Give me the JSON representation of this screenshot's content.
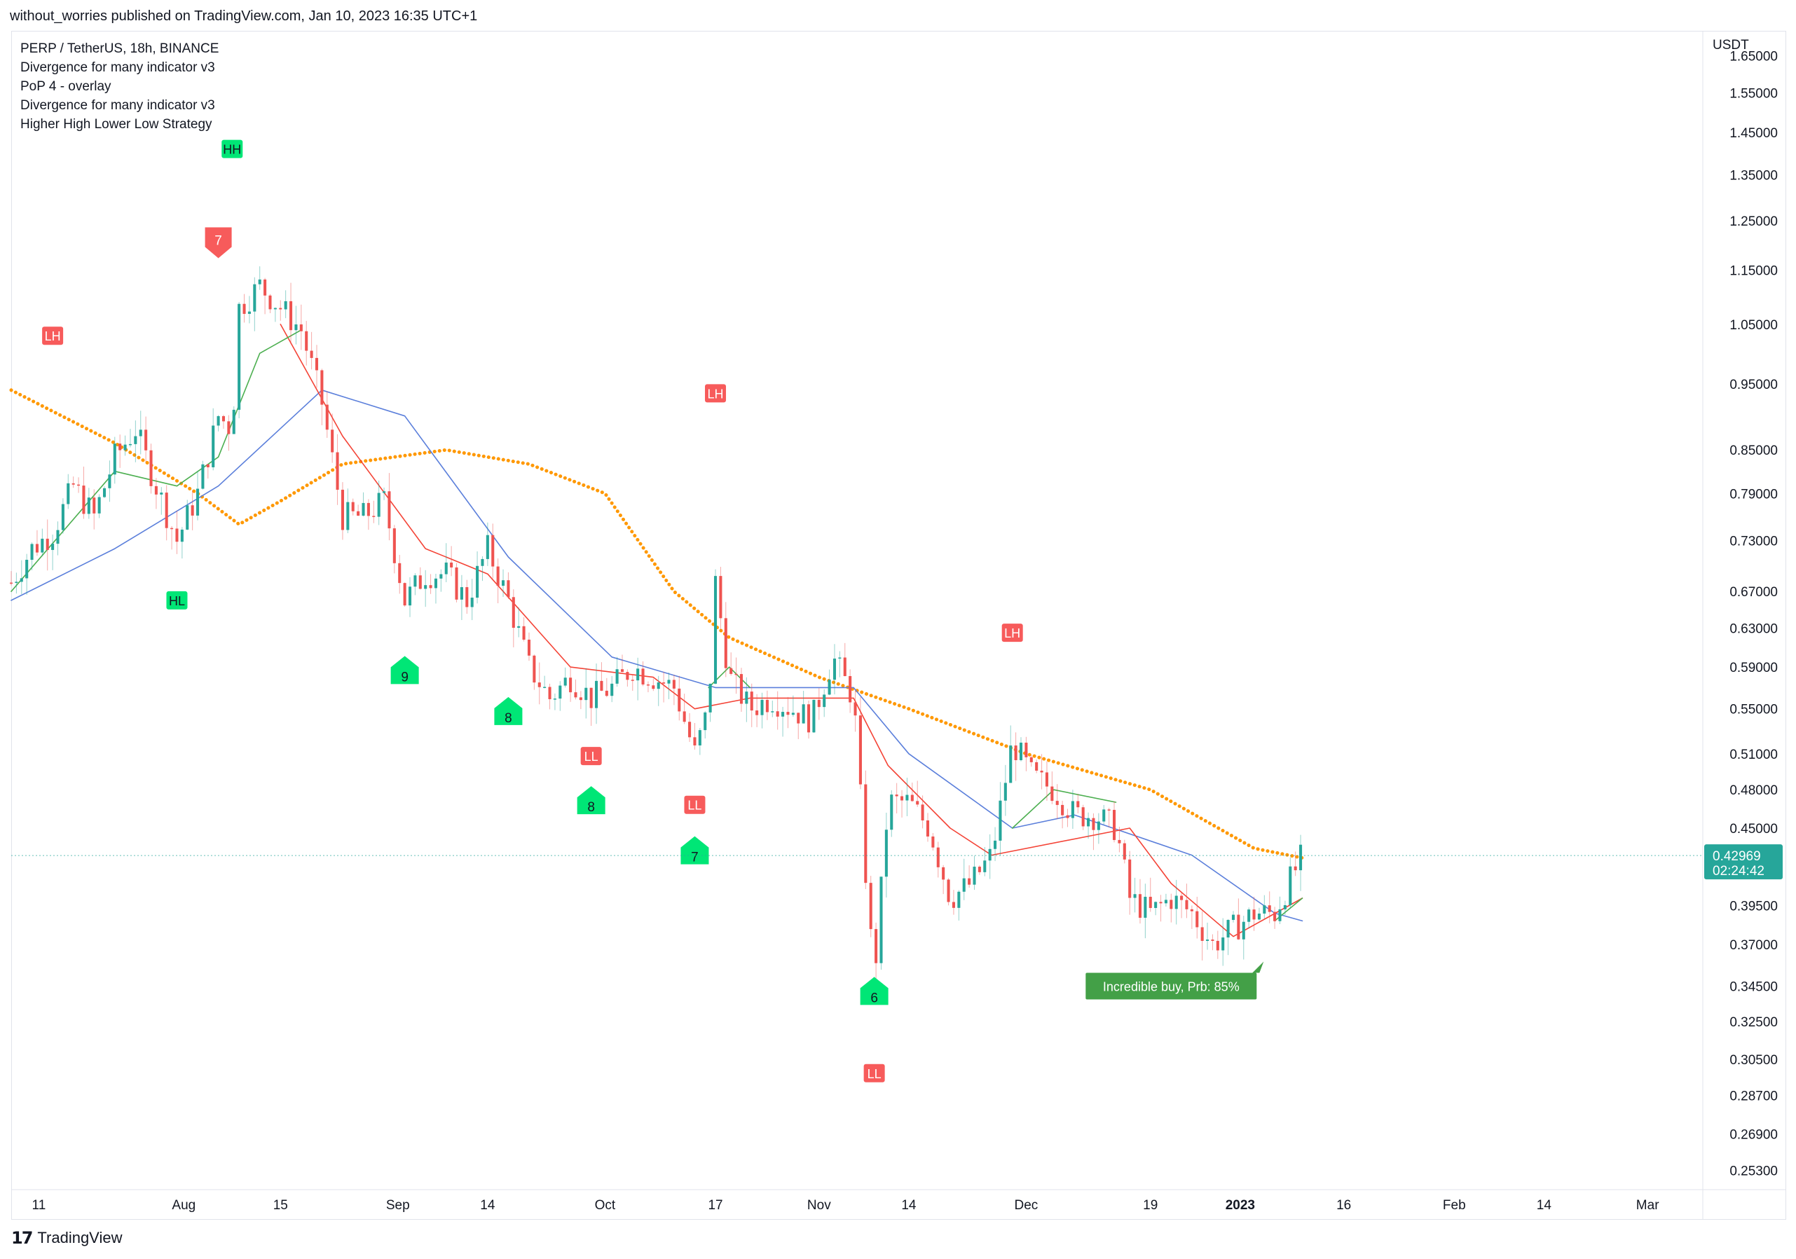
{
  "header": {
    "published_by": "without_worries published on TradingView.com, Jan 10, 2023 16:35 UTC+1"
  },
  "legend": {
    "symbol_line": "PERP / TetherUS, 18h, BINANCE",
    "indicators": [
      "Divergence for many indicator v3",
      "PoP 4 - overlay",
      "Divergence for many indicator v3",
      "Higher High Lower Low Strategy"
    ]
  },
  "price_axis": {
    "currency": "USDT",
    "current_price": "0.42969",
    "countdown": "02:24:42",
    "current_price_color": "#26a69a"
  },
  "footer": {
    "brand": "TradingView",
    "logo_icon": "tradingview-logo-icon"
  },
  "chart_data": {
    "type": "candlestick",
    "y_scale": "log",
    "ylim": [
      0.245,
      1.72
    ],
    "yticks": [
      "1.65000",
      "1.55000",
      "1.45000",
      "1.35000",
      "1.25000",
      "1.15000",
      "1.05000",
      "0.95000",
      "0.85000",
      "0.79000",
      "0.73000",
      "0.67000",
      "0.63000",
      "0.59000",
      "0.55000",
      "0.51000",
      "0.48000",
      "0.45000",
      "0.39500",
      "0.37000",
      "0.34500",
      "0.32500",
      "0.30500",
      "0.28700",
      "0.26900",
      "0.25300"
    ],
    "ytick_values": [
      1.65,
      1.55,
      1.45,
      1.35,
      1.25,
      1.15,
      1.05,
      0.95,
      0.85,
      0.79,
      0.73,
      0.67,
      0.63,
      0.59,
      0.55,
      0.51,
      0.48,
      0.45,
      0.395,
      0.37,
      0.345,
      0.325,
      0.305,
      0.287,
      0.269,
      0.253
    ],
    "xticks": [
      {
        "label": "11",
        "date": "2022-07-11"
      },
      {
        "label": "Aug",
        "date": "2022-08-01"
      },
      {
        "label": "15",
        "date": "2022-08-15"
      },
      {
        "label": "Sep",
        "date": "2022-09-01"
      },
      {
        "label": "14",
        "date": "2022-09-14"
      },
      {
        "label": "Oct",
        "date": "2022-10-01"
      },
      {
        "label": "17",
        "date": "2022-10-17"
      },
      {
        "label": "Nov",
        "date": "2022-11-01"
      },
      {
        "label": "14",
        "date": "2022-11-14"
      },
      {
        "label": "Dec",
        "date": "2022-12-01"
      },
      {
        "label": "19",
        "date": "2022-12-19"
      },
      {
        "label": "2023",
        "date": "2023-01-01",
        "bold": true
      },
      {
        "label": "16",
        "date": "2023-01-16"
      },
      {
        "label": "Feb",
        "date": "2023-02-01"
      },
      {
        "label": "14",
        "date": "2023-02-14"
      },
      {
        "label": "Mar",
        "date": "2023-03-01"
      }
    ],
    "xlim": [
      "2022-07-07",
      "2023-03-09"
    ],
    "colors": {
      "up": "#26a69a",
      "down": "#ef5350",
      "ma_fast": "#4caf50",
      "ma_mid": "#f44336",
      "ma_slow": "#5b7fdb",
      "ma_long": "#ff9800",
      "label_green": "#00e676",
      "label_red": "#f75b5b",
      "buy_box": "#43a047"
    },
    "price_path": [
      [
        "2022-07-07",
        0.68
      ],
      [
        "2022-07-10",
        0.72
      ],
      [
        "2022-07-13",
        0.74
      ],
      [
        "2022-07-16",
        0.8
      ],
      [
        "2022-07-19",
        0.76
      ],
      [
        "2022-07-22",
        0.84
      ],
      [
        "2022-07-25",
        0.88
      ],
      [
        "2022-07-28",
        0.8
      ],
      [
        "2022-07-31",
        0.73
      ],
      [
        "2022-08-03",
        0.79
      ],
      [
        "2022-08-06",
        0.9
      ],
      [
        "2022-08-08",
        0.88
      ],
      [
        "2022-08-09",
        1.08
      ],
      [
        "2022-08-12",
        1.12
      ],
      [
        "2022-08-15",
        1.08
      ],
      [
        "2022-08-18",
        1.04
      ],
      [
        "2022-08-21",
        0.92
      ],
      [
        "2022-08-24",
        0.76
      ],
      [
        "2022-08-27",
        0.76
      ],
      [
        "2022-08-30",
        0.78
      ],
      [
        "2022-09-02",
        0.66
      ],
      [
        "2022-09-05",
        0.69
      ],
      [
        "2022-09-08",
        0.69
      ],
      [
        "2022-09-11",
        0.66
      ],
      [
        "2022-09-14",
        0.72
      ],
      [
        "2022-09-17",
        0.66
      ],
      [
        "2022-09-20",
        0.59
      ],
      [
        "2022-09-23",
        0.56
      ],
      [
        "2022-09-26",
        0.58
      ],
      [
        "2022-09-29",
        0.56
      ],
      [
        "2022-10-02",
        0.57
      ],
      [
        "2022-10-05",
        0.59
      ],
      [
        "2022-10-08",
        0.58
      ],
      [
        "2022-10-11",
        0.57
      ],
      [
        "2022-10-14",
        0.51
      ],
      [
        "2022-10-16",
        0.55
      ],
      [
        "2022-10-17",
        0.68
      ],
      [
        "2022-10-19",
        0.58
      ],
      [
        "2022-10-22",
        0.55
      ],
      [
        "2022-10-25",
        0.56
      ],
      [
        "2022-10-28",
        0.55
      ],
      [
        "2022-10-31",
        0.54
      ],
      [
        "2022-11-03",
        0.6
      ],
      [
        "2022-11-06",
        0.56
      ],
      [
        "2022-11-08",
        0.4
      ],
      [
        "2022-11-09",
        0.35
      ],
      [
        "2022-11-11",
        0.47
      ],
      [
        "2022-11-14",
        0.47
      ],
      [
        "2022-11-17",
        0.45
      ],
      [
        "2022-11-20",
        0.4
      ],
      [
        "2022-11-23",
        0.41
      ],
      [
        "2022-11-26",
        0.43
      ],
      [
        "2022-11-29",
        0.52
      ],
      [
        "2022-12-02",
        0.49
      ],
      [
        "2022-12-05",
        0.48
      ],
      [
        "2022-12-08",
        0.46
      ],
      [
        "2022-12-11",
        0.46
      ],
      [
        "2022-12-14",
        0.45
      ],
      [
        "2022-12-16",
        0.4
      ],
      [
        "2022-12-19",
        0.39
      ],
      [
        "2022-12-22",
        0.4
      ],
      [
        "2022-12-25",
        0.39
      ],
      [
        "2022-12-28",
        0.37
      ],
      [
        "2022-12-31",
        0.38
      ],
      [
        "2023-01-03",
        0.39
      ],
      [
        "2023-01-06",
        0.39
      ],
      [
        "2023-01-08",
        0.41
      ],
      [
        "2023-01-10",
        0.42969
      ]
    ],
    "series": [
      {
        "name": "",
        "color": "#ff9800",
        "style": "dotted",
        "points": [
          [
            "2022-07-07",
            0.94
          ],
          [
            "2022-07-22",
            0.86
          ],
          [
            "2022-08-03",
            0.79
          ],
          [
            "2022-08-09",
            0.75
          ],
          [
            "2022-08-15",
            0.78
          ],
          [
            "2022-08-24",
            0.83
          ],
          [
            "2022-09-08",
            0.85
          ],
          [
            "2022-09-20",
            0.83
          ],
          [
            "2022-10-01",
            0.79
          ],
          [
            "2022-10-11",
            0.67
          ],
          [
            "2022-10-19",
            0.62
          ],
          [
            "2022-11-01",
            0.58
          ],
          [
            "2022-11-14",
            0.55
          ],
          [
            "2022-12-01",
            0.51
          ],
          [
            "2022-12-19",
            0.48
          ],
          [
            "2023-01-03",
            0.435
          ],
          [
            "2023-01-10",
            0.428
          ]
        ]
      },
      {
        "name": "",
        "color": "#5b7fdb",
        "style": "solid",
        "points": [
          [
            "2022-07-07",
            0.66
          ],
          [
            "2022-07-22",
            0.72
          ],
          [
            "2022-08-06",
            0.8
          ],
          [
            "2022-08-21",
            0.94
          ],
          [
            "2022-09-02",
            0.9
          ],
          [
            "2022-09-17",
            0.71
          ],
          [
            "2022-10-02",
            0.6
          ],
          [
            "2022-10-17",
            0.57
          ],
          [
            "2022-11-06",
            0.57
          ],
          [
            "2022-11-14",
            0.51
          ],
          [
            "2022-11-29",
            0.45
          ],
          [
            "2022-12-08",
            0.46
          ],
          [
            "2022-12-25",
            0.43
          ],
          [
            "2023-01-06",
            0.39
          ],
          [
            "2023-01-10",
            0.385
          ]
        ]
      },
      {
        "name": "",
        "color": "#f44336",
        "style": "solid",
        "points": [
          [
            "2022-08-15",
            1.05
          ],
          [
            "2022-08-24",
            0.87
          ],
          [
            "2022-09-05",
            0.72
          ],
          [
            "2022-09-14",
            0.69
          ],
          [
            "2022-09-26",
            0.59
          ],
          [
            "2022-10-08",
            0.58
          ],
          [
            "2022-10-14",
            0.55
          ],
          [
            "2022-10-22",
            0.56
          ],
          [
            "2022-11-06",
            0.56
          ],
          [
            "2022-11-11",
            0.5
          ],
          [
            "2022-11-20",
            0.45
          ],
          [
            "2022-11-26",
            0.43
          ],
          [
            "2022-12-16",
            0.45
          ],
          [
            "2022-12-22",
            0.41
          ],
          [
            "2022-12-31",
            0.375
          ],
          [
            "2023-01-10",
            0.4
          ]
        ]
      },
      {
        "name": "",
        "color": "#4caf50",
        "style": "solid",
        "points": [
          [
            "2022-07-07",
            0.67
          ],
          [
            "2022-07-22",
            0.82
          ],
          [
            "2022-07-31",
            0.8
          ],
          [
            "2022-08-06",
            0.84
          ],
          [
            "2022-08-12",
            1.0
          ],
          [
            "2022-08-18",
            1.04
          ]
        ]
      },
      {
        "name": "",
        "color": "#4caf50",
        "style": "solid",
        "points": [
          [
            "2022-10-16",
            0.57
          ],
          [
            "2022-10-19",
            0.59
          ],
          [
            "2022-10-22",
            0.57
          ]
        ]
      },
      {
        "name": "",
        "color": "#4caf50",
        "style": "solid",
        "points": [
          [
            "2022-11-29",
            0.45
          ],
          [
            "2022-12-05",
            0.48
          ],
          [
            "2022-12-14",
            0.47
          ]
        ]
      },
      {
        "name": "",
        "color": "#4caf50",
        "style": "solid",
        "points": [
          [
            "2023-01-06",
            0.385
          ],
          [
            "2023-01-10",
            0.4
          ]
        ]
      }
    ],
    "annotations": [
      {
        "text": "LH",
        "date": "2022-07-13",
        "price": 1.03,
        "kind": "red-tag"
      },
      {
        "text": "HH",
        "date": "2022-08-08",
        "price": 1.41,
        "kind": "green-tag"
      },
      {
        "text": "7",
        "date": "2022-08-06",
        "price": 1.21,
        "kind": "red-arrow-down"
      },
      {
        "text": "HL",
        "date": "2022-07-31",
        "price": 0.66,
        "kind": "green-tag"
      },
      {
        "text": "9",
        "date": "2022-09-02",
        "price": 0.585,
        "kind": "green-arrow-up"
      },
      {
        "text": "8",
        "date": "2022-09-17",
        "price": 0.546,
        "kind": "green-arrow-up"
      },
      {
        "text": "LL",
        "date": "2022-09-29",
        "price": 0.508,
        "kind": "red-tag"
      },
      {
        "text": "8",
        "date": "2022-09-29",
        "price": 0.47,
        "kind": "green-arrow-up"
      },
      {
        "text": "LH",
        "date": "2022-10-17",
        "price": 0.935,
        "kind": "red-tag"
      },
      {
        "text": "LL",
        "date": "2022-10-14",
        "price": 0.468,
        "kind": "red-tag"
      },
      {
        "text": "7",
        "date": "2022-10-14",
        "price": 0.432,
        "kind": "green-arrow-up"
      },
      {
        "text": "6",
        "date": "2022-11-09",
        "price": 0.341,
        "kind": "green-arrow-up"
      },
      {
        "text": "LL",
        "date": "2022-11-09",
        "price": 0.298,
        "kind": "red-tag"
      },
      {
        "text": "LH",
        "date": "2022-11-29",
        "price": 0.625,
        "kind": "red-tag"
      },
      {
        "text": "Incredible buy, Prb: 85%",
        "date": "2022-12-22",
        "price": 0.345,
        "kind": "buy-box"
      }
    ]
  }
}
